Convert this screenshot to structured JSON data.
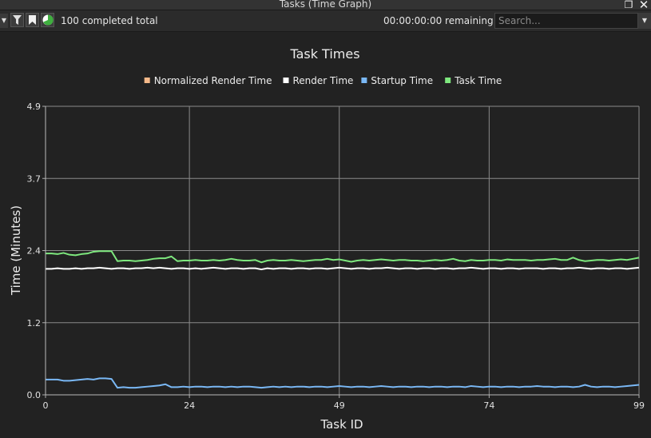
{
  "window": {
    "title": "Tasks (Time Graph)",
    "restore_icon": "restore-icon",
    "close_icon": "close-icon"
  },
  "toolbar": {
    "icons": [
      "dropdown-arrow-icon",
      "filter-icon",
      "bookmark-icon",
      "pie-chart-icon"
    ],
    "completed_text": "100 completed total",
    "remaining_text": "00:00:00:00 remaining",
    "search_placeholder": "Search..."
  },
  "colors": {
    "background": "#222222",
    "grid": "#8a8a8a",
    "normalized_render": "#f5b98a",
    "render": "#ffffff",
    "startup": "#7ab8f5",
    "task": "#7ee87e"
  },
  "chart_data": {
    "type": "line",
    "title": "Task Times",
    "xlabel": "Task ID",
    "ylabel": "Time (Minutes)",
    "xlim": [
      0,
      99
    ],
    "ylim": [
      0,
      4.9
    ],
    "x_ticks": [
      0,
      24,
      49,
      74,
      99
    ],
    "y_ticks": [
      "0.0",
      "1.2",
      "2.4",
      "3.7",
      "4.9"
    ],
    "y_tick_values": [
      0,
      1.225,
      2.45,
      3.675,
      4.9
    ],
    "grid": true,
    "legend_position": "top-center",
    "legend": [
      "Normalized Render Time",
      "Render Time",
      "Startup Time",
      "Task Time"
    ],
    "series": [
      {
        "name": "Normalized Render Time",
        "color": "#f5b98a",
        "values": []
      },
      {
        "name": "Render Time",
        "color": "#ffffff",
        "values": [
          2.14,
          2.14,
          2.15,
          2.14,
          2.14,
          2.15,
          2.14,
          2.15,
          2.15,
          2.16,
          2.15,
          2.14,
          2.15,
          2.15,
          2.14,
          2.15,
          2.15,
          2.16,
          2.15,
          2.16,
          2.15,
          2.14,
          2.15,
          2.15,
          2.14,
          2.15,
          2.14,
          2.15,
          2.16,
          2.15,
          2.14,
          2.15,
          2.15,
          2.14,
          2.15,
          2.15,
          2.13,
          2.15,
          2.14,
          2.15,
          2.15,
          2.14,
          2.15,
          2.15,
          2.14,
          2.15,
          2.15,
          2.14,
          2.15,
          2.16,
          2.15,
          2.14,
          2.15,
          2.15,
          2.14,
          2.15,
          2.15,
          2.16,
          2.15,
          2.14,
          2.15,
          2.15,
          2.14,
          2.15,
          2.15,
          2.14,
          2.15,
          2.15,
          2.14,
          2.15,
          2.15,
          2.16,
          2.15,
          2.14,
          2.15,
          2.15,
          2.14,
          2.15,
          2.15,
          2.14,
          2.15,
          2.15,
          2.15,
          2.14,
          2.15,
          2.15,
          2.14,
          2.15,
          2.15,
          2.16,
          2.15,
          2.14,
          2.15,
          2.15,
          2.14,
          2.15,
          2.15,
          2.14,
          2.15,
          2.16
        ]
      },
      {
        "name": "Startup Time",
        "color": "#7ab8f5",
        "values": [
          0.26,
          0.26,
          0.26,
          0.24,
          0.24,
          0.25,
          0.26,
          0.27,
          0.26,
          0.28,
          0.28,
          0.27,
          0.12,
          0.13,
          0.12,
          0.12,
          0.13,
          0.14,
          0.15,
          0.16,
          0.18,
          0.13,
          0.13,
          0.14,
          0.13,
          0.14,
          0.14,
          0.13,
          0.14,
          0.14,
          0.13,
          0.14,
          0.13,
          0.14,
          0.14,
          0.13,
          0.12,
          0.13,
          0.14,
          0.13,
          0.14,
          0.13,
          0.14,
          0.14,
          0.13,
          0.14,
          0.14,
          0.13,
          0.14,
          0.15,
          0.14,
          0.13,
          0.14,
          0.14,
          0.13,
          0.14,
          0.15,
          0.14,
          0.13,
          0.14,
          0.14,
          0.13,
          0.14,
          0.14,
          0.13,
          0.14,
          0.14,
          0.13,
          0.14,
          0.14,
          0.13,
          0.15,
          0.14,
          0.13,
          0.14,
          0.14,
          0.13,
          0.14,
          0.14,
          0.13,
          0.14,
          0.14,
          0.15,
          0.14,
          0.14,
          0.13,
          0.14,
          0.14,
          0.13,
          0.14,
          0.17,
          0.14,
          0.13,
          0.14,
          0.14,
          0.13,
          0.14,
          0.15,
          0.16,
          0.17
        ]
      },
      {
        "name": "Task Time",
        "color": "#7ee87e",
        "values": [
          2.4,
          2.4,
          2.39,
          2.41,
          2.38,
          2.37,
          2.39,
          2.4,
          2.43,
          2.44,
          2.44,
          2.44,
          2.27,
          2.28,
          2.28,
          2.27,
          2.28,
          2.29,
          2.31,
          2.32,
          2.32,
          2.35,
          2.27,
          2.28,
          2.28,
          2.29,
          2.28,
          2.28,
          2.29,
          2.28,
          2.29,
          2.31,
          2.29,
          2.28,
          2.28,
          2.29,
          2.25,
          2.28,
          2.29,
          2.28,
          2.28,
          2.29,
          2.28,
          2.27,
          2.28,
          2.29,
          2.29,
          2.31,
          2.29,
          2.3,
          2.28,
          2.26,
          2.28,
          2.29,
          2.28,
          2.29,
          2.3,
          2.29,
          2.28,
          2.29,
          2.29,
          2.28,
          2.28,
          2.27,
          2.28,
          2.29,
          2.28,
          2.29,
          2.31,
          2.28,
          2.27,
          2.29,
          2.28,
          2.28,
          2.29,
          2.29,
          2.28,
          2.3,
          2.29,
          2.29,
          2.29,
          2.28,
          2.29,
          2.29,
          2.3,
          2.31,
          2.29,
          2.29,
          2.33,
          2.29,
          2.27,
          2.28,
          2.29,
          2.29,
          2.28,
          2.29,
          2.3,
          2.29,
          2.31,
          2.33
        ]
      }
    ]
  }
}
